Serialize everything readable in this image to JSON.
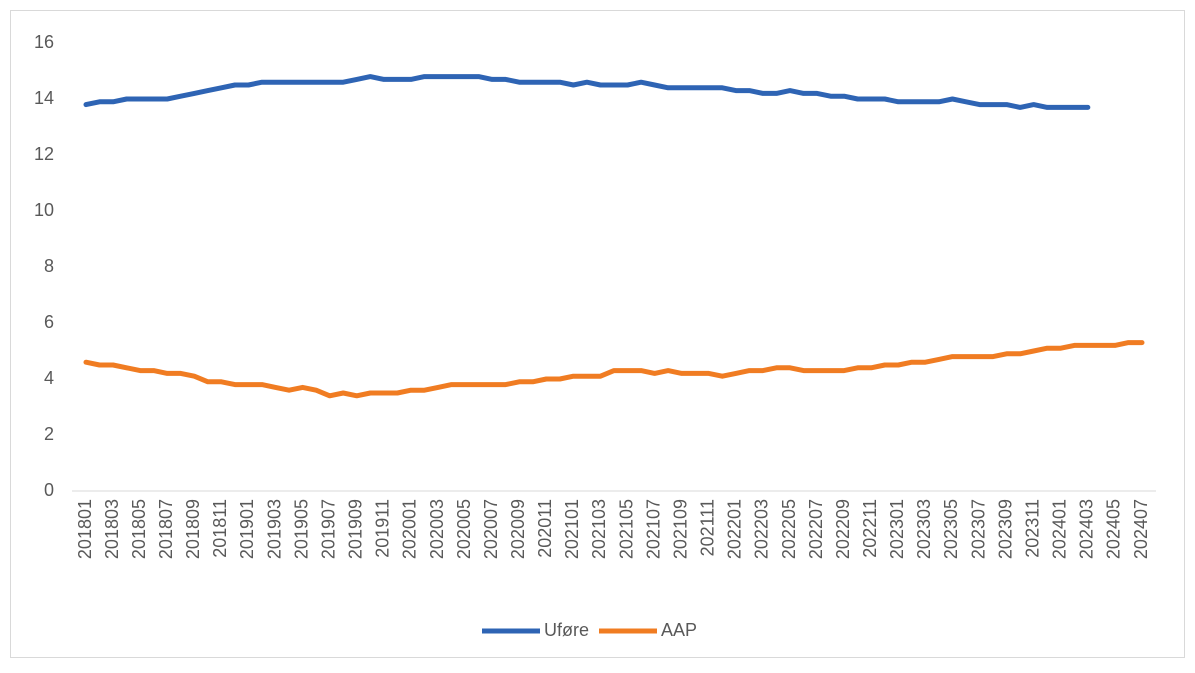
{
  "chart_data": {
    "type": "line",
    "categories": [
      "201801",
      null,
      "201803",
      null,
      "201805",
      null,
      "201807",
      null,
      "201809",
      null,
      "201811",
      null,
      "201901",
      null,
      "201903",
      null,
      "201905",
      null,
      "201907",
      null,
      "201909",
      null,
      "201911",
      null,
      "202001",
      null,
      "202003",
      null,
      "202005",
      null,
      "202007",
      null,
      "202009",
      null,
      "202011",
      null,
      "202101",
      null,
      "202103",
      null,
      "202105",
      null,
      "202107",
      null,
      "202109",
      null,
      "202111",
      null,
      "202201",
      null,
      "202203",
      null,
      "202205",
      null,
      "202207",
      null,
      "202209",
      null,
      "202211",
      null,
      "202301",
      null,
      "202303",
      null,
      "202305",
      null,
      "202307",
      null,
      "202309",
      null,
      "202311",
      null,
      "202401",
      null,
      "202403",
      null,
      "202405",
      null,
      "202407"
    ],
    "series": [
      {
        "name": "Uføre",
        "color": "#2e64b4",
        "values": [
          13.8,
          13.9,
          13.9,
          14.0,
          14.0,
          14.0,
          14.0,
          14.1,
          14.2,
          14.3,
          14.4,
          14.5,
          14.5,
          14.6,
          14.6,
          14.6,
          14.6,
          14.6,
          14.6,
          14.6,
          14.7,
          14.8,
          14.7,
          14.7,
          14.7,
          14.8,
          14.8,
          14.8,
          14.8,
          14.8,
          14.7,
          14.7,
          14.6,
          14.6,
          14.6,
          14.6,
          14.5,
          14.6,
          14.5,
          14.5,
          14.5,
          14.6,
          14.5,
          14.4,
          14.4,
          14.4,
          14.4,
          14.4,
          14.3,
          14.3,
          14.2,
          14.2,
          14.3,
          14.2,
          14.2,
          14.1,
          14.1,
          14.0,
          14.0,
          14.0,
          13.9,
          13.9,
          13.9,
          13.9,
          14.0,
          13.9,
          13.8,
          13.8,
          13.8,
          13.7,
          13.8,
          13.7,
          13.7,
          13.7,
          13.7,
          null,
          null,
          null,
          null
        ]
      },
      {
        "name": "AAP",
        "color": "#f07c22",
        "values": [
          4.6,
          4.5,
          4.5,
          4.4,
          4.3,
          4.3,
          4.2,
          4.2,
          4.1,
          3.9,
          3.9,
          3.8,
          3.8,
          3.8,
          3.7,
          3.6,
          3.7,
          3.6,
          3.4,
          3.5,
          3.4,
          3.5,
          3.5,
          3.5,
          3.6,
          3.6,
          3.7,
          3.8,
          3.8,
          3.8,
          3.8,
          3.8,
          3.9,
          3.9,
          4.0,
          4.0,
          4.1,
          4.1,
          4.1,
          4.3,
          4.3,
          4.3,
          4.2,
          4.3,
          4.2,
          4.2,
          4.2,
          4.1,
          4.2,
          4.3,
          4.3,
          4.4,
          4.4,
          4.3,
          4.3,
          4.3,
          4.3,
          4.4,
          4.4,
          4.5,
          4.5,
          4.6,
          4.6,
          4.7,
          4.8,
          4.8,
          4.8,
          4.8,
          4.9,
          4.9,
          5.0,
          5.1,
          5.1,
          5.2,
          5.2,
          5.2,
          5.2,
          5.3,
          5.3
        ]
      }
    ],
    "ylim": [
      0,
      16
    ],
    "yticks": [
      0,
      2,
      4,
      6,
      8,
      10,
      12,
      14,
      16
    ],
    "grid": false,
    "legend": "bottom"
  }
}
